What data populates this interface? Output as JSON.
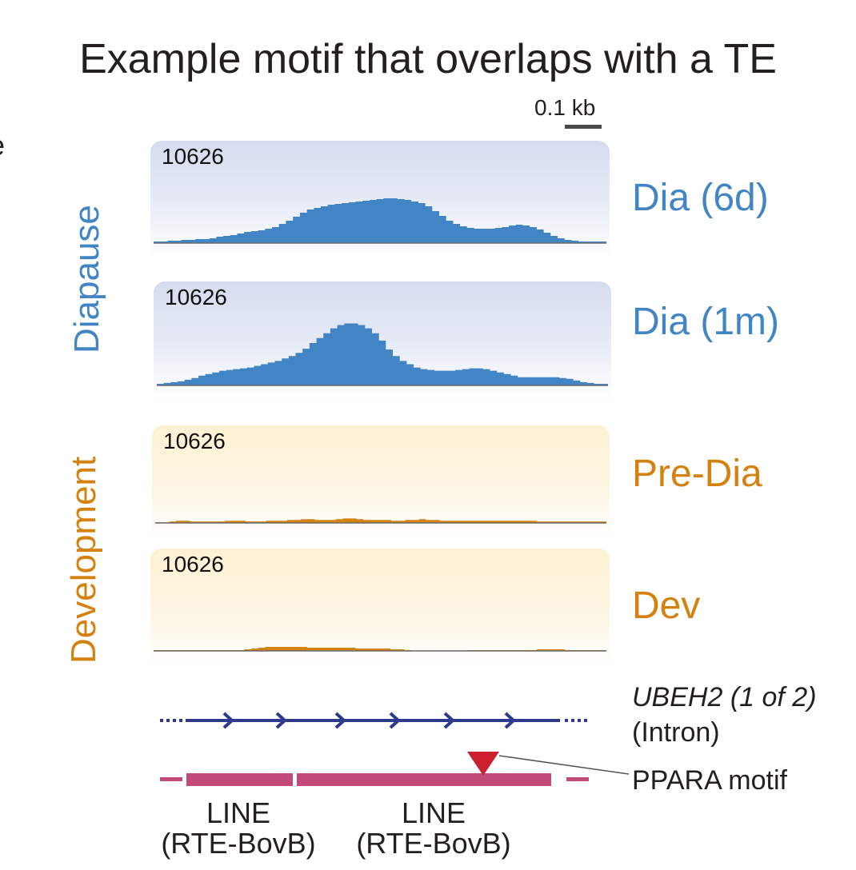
{
  "title": "Example motif that overlaps with a TE",
  "edge_fragment": "e",
  "scale": {
    "label": "0.1 kb"
  },
  "groups": {
    "diapause": "Diapause",
    "development": "Development"
  },
  "colors": {
    "diapause": "#4285c4",
    "development": "#d4810f",
    "gene": "#2e3a8c",
    "te": "#c2497a",
    "motif": "#cc1f2e"
  },
  "tracks": [
    {
      "sample": "Dia (6d)",
      "range": "10626",
      "group": "diapause",
      "signal": [
        2,
        2,
        3,
        3,
        4,
        4,
        5,
        5,
        6,
        8,
        9,
        10,
        12,
        14,
        15,
        16,
        18,
        20,
        24,
        28,
        33,
        38,
        42,
        44,
        46,
        48,
        49,
        50,
        51,
        52,
        53,
        54,
        55,
        56,
        56,
        55,
        54,
        52,
        50,
        46,
        40,
        34,
        28,
        24,
        21,
        19,
        18,
        18,
        18,
        19,
        20,
        22,
        23,
        22,
        20,
        17,
        13,
        9,
        6,
        4,
        3,
        2,
        2,
        2,
        2
      ]
    },
    {
      "sample": "Dia (1m)",
      "range": "10626",
      "group": "diapause",
      "signal": [
        2,
        3,
        4,
        5,
        7,
        9,
        12,
        14,
        16,
        18,
        19,
        20,
        21,
        22,
        24,
        26,
        28,
        30,
        33,
        36,
        40,
        45,
        52,
        58,
        64,
        70,
        74,
        76,
        76,
        74,
        70,
        64,
        55,
        44,
        36,
        30,
        26,
        22,
        20,
        19,
        18,
        18,
        18,
        19,
        20,
        21,
        21,
        20,
        18,
        16,
        14,
        12,
        10,
        10,
        10,
        10,
        10,
        10,
        9,
        8,
        6,
        4,
        3,
        2,
        2
      ]
    },
    {
      "sample": "Pre-Dia",
      "range": "10626",
      "group": "development",
      "signal": [
        1,
        1,
        2,
        3,
        3,
        2,
        2,
        2,
        2,
        2,
        3,
        3,
        3,
        2,
        2,
        2,
        3,
        3,
        3,
        4,
        4,
        5,
        5,
        4,
        4,
        4,
        5,
        6,
        6,
        5,
        4,
        4,
        4,
        4,
        3,
        3,
        4,
        4,
        5,
        4,
        4,
        3,
        3,
        3,
        3,
        3,
        3,
        3,
        3,
        3,
        3,
        3,
        3,
        3,
        3,
        2,
        2,
        2,
        2,
        2,
        2,
        2,
        2,
        2,
        2
      ]
    },
    {
      "sample": "Dev",
      "range": "10626",
      "group": "development",
      "signal": [
        1,
        1,
        1,
        1,
        1,
        1,
        1,
        1,
        1,
        1,
        1,
        1,
        1,
        2,
        3,
        4,
        5,
        5,
        5,
        5,
        5,
        5,
        4,
        4,
        4,
        4,
        4,
        4,
        4,
        3,
        3,
        3,
        3,
        3,
        2,
        2,
        1,
        0,
        0,
        0,
        0,
        0,
        0,
        0,
        0,
        1,
        1,
        1,
        1,
        1,
        1,
        1,
        1,
        1,
        1,
        2,
        2,
        2,
        2,
        1,
        1,
        1,
        1,
        1,
        1
      ]
    }
  ],
  "gene": {
    "name": "UBEH2 (1 of 2)",
    "region": "(Intron)"
  },
  "motif": {
    "label": "PPARA motif"
  },
  "te_elements": [
    {
      "family": "LINE",
      "subfamily": "(RTE-BovB)"
    },
    {
      "family": "LINE",
      "subfamily": "(RTE-BovB)"
    }
  ]
}
